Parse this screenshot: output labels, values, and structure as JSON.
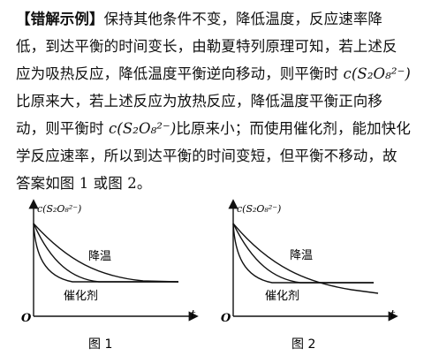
{
  "paragraph": {
    "line1_bracket_left": "【",
    "line1_tag": "错解示例",
    "line1_bracket_right": "】",
    "line1_rest": "保持其他条件不变，降低温度，反应速率降",
    "line2": "低，到达平衡的时间变长，由勒夏特列原理可知，若上述反",
    "line3_a": "应为吸热反应，降低温度平衡逆向移动，则平衡时 ",
    "line3_formula": "c(S₂O₈²⁻)",
    "line4": "比原来大，若上述反应为放热反应，降低温度平衡正向移",
    "line5_a": "动，则平衡时 ",
    "line5_formula": "c(S₂O₈²⁻)",
    "line5_b": "比原来小；而使用催化剂，能加快化",
    "line6": "学反应速率，所以到达平衡的时间变短，但平衡不移动，故",
    "line7": "答案如图 1 或图 2。"
  },
  "figures": [
    {
      "y_axis_label": "c(S₂O₈²⁻)",
      "x_axis_label": "t",
      "origin_label": "O",
      "curve_label_cooling": "降温",
      "curve_label_catalyst": "催化剂",
      "caption": "图 1"
    },
    {
      "y_axis_label": "c(S₂O₈²⁻)",
      "x_axis_label": "t",
      "origin_label": "O",
      "curve_label_cooling": "降温",
      "curve_label_catalyst": "催化剂",
      "caption": "图 2"
    }
  ]
}
